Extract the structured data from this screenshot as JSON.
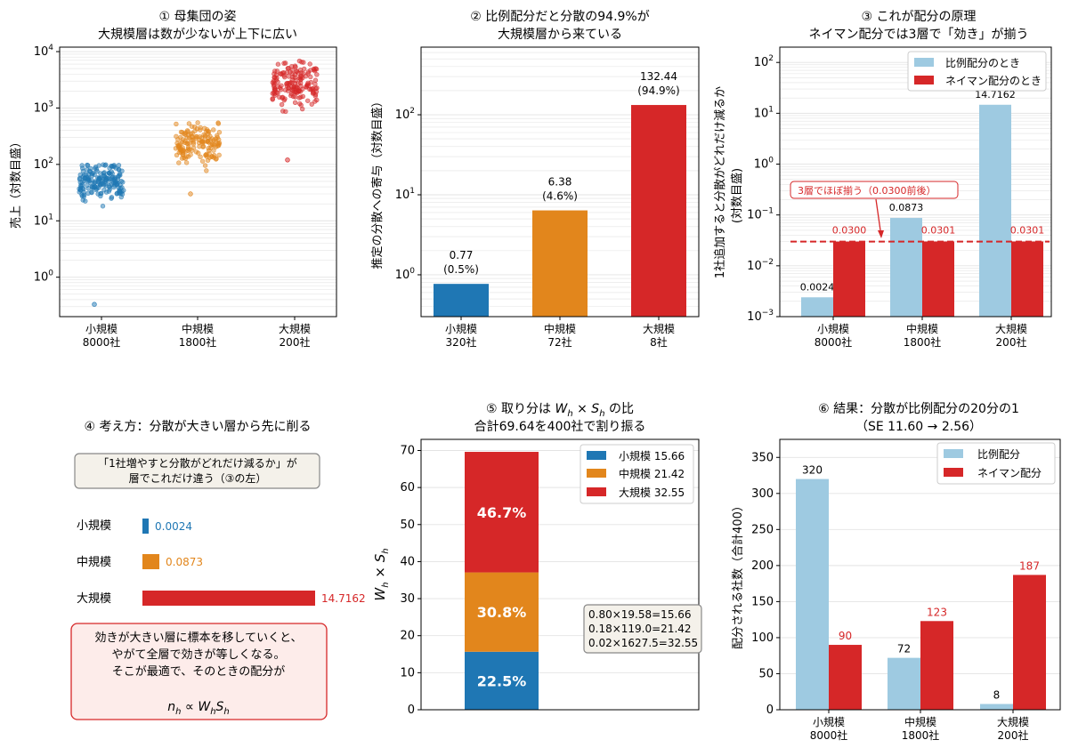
{
  "colors": {
    "small": "#1f77b4",
    "medium": "#e2861c",
    "large": "#d62728",
    "prop": "#9ecae1",
    "neyman": "#d62728",
    "grid": "#e3e3e3"
  },
  "panel1": {
    "title_l1": "① 母集団の姿",
    "title_l2": "大規模層は数が少ないが上下に広い",
    "ylabel": "売上（対数目盛）",
    "yticks": [
      {
        "b": "10",
        "e": "0"
      },
      {
        "b": "10",
        "e": "1"
      },
      {
        "b": "10",
        "e": "2"
      },
      {
        "b": "10",
        "e": "3"
      },
      {
        "b": "10",
        "e": "4"
      }
    ],
    "cat_l1": [
      "小規模",
      "中規模",
      "大規模"
    ],
    "cat_l2": [
      "8000社",
      "1800社",
      "200社"
    ]
  },
  "panel2": {
    "title_l1": "② 比例配分だと分散の94.9%が",
    "title_l2": "大規模層から来ている",
    "ylabel": "推定の分散への寄与（対数目盛）",
    "yticks": [
      {
        "b": "10",
        "e": "0"
      },
      {
        "b": "10",
        "e": "1"
      },
      {
        "b": "10",
        "e": "2"
      }
    ],
    "cat_l1": [
      "小規模",
      "中規模",
      "大規模"
    ],
    "cat_l2": [
      "320社",
      "72社",
      "8社"
    ],
    "bar_labels_l1": [
      "0.77",
      "6.38",
      "132.44"
    ],
    "bar_labels_l2": [
      "(0.5%)",
      "(4.6%)",
      "(94.9%)"
    ]
  },
  "panel3": {
    "title_l1": "③ これが配分の原理",
    "title_l2": "ネイマン配分では3層で「効き」が揃う",
    "ylabel_l1": "1社追加すると分散がどれだけ減るか",
    "ylabel_l2": "(対数目盛)",
    "yticks": [
      {
        "b": "10",
        "e": "−3"
      },
      {
        "b": "10",
        "e": "−2"
      },
      {
        "b": "10",
        "e": "−1"
      },
      {
        "b": "10",
        "e": "0"
      },
      {
        "b": "10",
        "e": "1"
      },
      {
        "b": "10",
        "e": "2"
      }
    ],
    "cat_l1": [
      "小規模",
      "中規模",
      "大規模"
    ],
    "cat_l2": [
      "8000社",
      "1800社",
      "200社"
    ],
    "legend": [
      "比例配分のとき",
      "ネイマン配分のとき"
    ],
    "prop_labels": [
      "0.0024",
      "0.0873",
      "14.7162"
    ],
    "neyman_labels": [
      "0.0300",
      "0.0301",
      "0.0301"
    ],
    "annotation": "3層でほぼ揃う（0.0300前後）"
  },
  "panel4": {
    "title": "④ 考え方：分散が大きい層から先に削る",
    "box_l1": "「1社増やすと分散がどれだけ減るか」が",
    "box_l2": "層でこれだけ違う（③の左）",
    "rows": [
      "小規模",
      "中規模",
      "大規模"
    ],
    "values_text": [
      "0.0024",
      "0.0873",
      "14.7162"
    ],
    "note_l1": "効きが大きい層に標本を移していくと、",
    "note_l2": "やがて全層で効きが等しくなる。",
    "note_l3": "そこが最適で、そのときの配分が",
    "formula_lhs": "n",
    "formula_rel": " ∝ W",
    "formula_s": "S",
    "formula_sub": "h"
  },
  "panel5": {
    "title_l1_prefix": "⑤ 取り分は ",
    "title_l1_suffix": " の比",
    "title_l2": "合計69.64を400社で割り振る",
    "ylabel": "W",
    "yticks": [
      "0",
      "10",
      "20",
      "30",
      "40",
      "50",
      "60",
      "70"
    ],
    "legend": [
      "小規模 15.66",
      "中規模 21.42",
      "大規模 32.55"
    ],
    "pct_labels": [
      "22.5%",
      "30.8%",
      "46.7%"
    ],
    "calc_l1": "0.80×19.58=15.66",
    "calc_l2": "0.18×119.0=21.42",
    "calc_l3": "0.02×1627.5=32.55"
  },
  "panel6": {
    "title_l1": "⑥ 結果：分散が比例配分の20分の1",
    "title_l2": "（SE 11.60 → 2.56）",
    "ylabel": "配分される社数（合計400）",
    "yticks": [
      "0",
      "50",
      "100",
      "150",
      "200",
      "250",
      "300",
      "350"
    ],
    "cat_l1": [
      "小規模",
      "中規模",
      "大規模"
    ],
    "cat_l2": [
      "8000社",
      "1800社",
      "200社"
    ],
    "legend": [
      "比例配分",
      "ネイマン配分"
    ],
    "prop_labels": [
      "320",
      "72",
      "8"
    ],
    "neyman_labels": [
      "90",
      "123",
      "187"
    ]
  },
  "chart_data": [
    {
      "type": "scatter",
      "title": "① 母集団の姿 大規模層は数が少ないが上下に広い",
      "ylabel": "売上（対数目盛）",
      "yscale": "log",
      "ylim": [
        0.2,
        12000
      ],
      "categories": [
        "小規模 8000社",
        "中規模 1800社",
        "大規模 200社"
      ],
      "series": [
        {
          "name": "小規模",
          "center": 50,
          "range": [
            0.33,
            100
          ]
        },
        {
          "name": "中規模",
          "center": 230,
          "range": [
            30,
            550
          ]
        },
        {
          "name": "大規模",
          "center": 2500,
          "range": [
            120,
            7000
          ]
        }
      ]
    },
    {
      "type": "bar",
      "title": "② 比例配分だと分散の94.9%が 大規模層から来ている",
      "ylabel": "推定の分散への寄与（対数目盛）",
      "yscale": "log",
      "ylim": [
        0.3,
        700
      ],
      "categories": [
        "小規模 320社",
        "中規模 72社",
        "大規模 8社"
      ],
      "values": [
        0.77,
        6.38,
        132.44
      ],
      "percent": [
        0.5,
        4.6,
        94.9
      ]
    },
    {
      "type": "bar",
      "title": "③ これが配分の原理 ネイマン配分では3層で「効き」が揃う",
      "ylabel": "1社追加すると分散がどれだけ減るか (対数目盛)",
      "yscale": "log",
      "ylim": [
        0.001,
        200
      ],
      "categories": [
        "小規模 8000社",
        "中規模 1800社",
        "大規模 200社"
      ],
      "series": [
        {
          "name": "比例配分のとき",
          "values": [
            0.0024,
            0.0873,
            14.7162
          ]
        },
        {
          "name": "ネイマン配分のとき",
          "values": [
            0.03,
            0.0301,
            0.0301
          ]
        }
      ],
      "reference_line": 0.03
    },
    {
      "type": "bar",
      "title": "④ 考え方：分散が大きい層から先に削る",
      "categories": [
        "小規模",
        "中規模",
        "大規模"
      ],
      "values": [
        0.0024,
        0.0873,
        14.7162
      ]
    },
    {
      "type": "bar",
      "title": "⑤ 取り分は W_h × S_h の比 合計69.64を400社で割り振る",
      "ylabel": "W_h × S_h",
      "ylim": [
        0,
        73
      ],
      "stacked": true,
      "series": [
        {
          "name": "小規模 15.66",
          "values": [
            15.66
          ],
          "percent": 22.5
        },
        {
          "name": "中規模 21.42",
          "values": [
            21.42
          ],
          "percent": 30.8
        },
        {
          "name": "大規模 32.55",
          "values": [
            32.55
          ],
          "percent": 46.7
        }
      ]
    },
    {
      "type": "bar",
      "title": "⑥ 結果：分散が比例配分の20分の1 （SE 11.60 → 2.56）",
      "ylabel": "配分される社数（合計400）",
      "ylim": [
        0,
        375
      ],
      "categories": [
        "小規模 8000社",
        "中規模 1800社",
        "大規模 200社"
      ],
      "series": [
        {
          "name": "比例配分",
          "values": [
            320,
            72,
            8
          ]
        },
        {
          "name": "ネイマン配分",
          "values": [
            90,
            123,
            187
          ]
        }
      ]
    }
  ]
}
